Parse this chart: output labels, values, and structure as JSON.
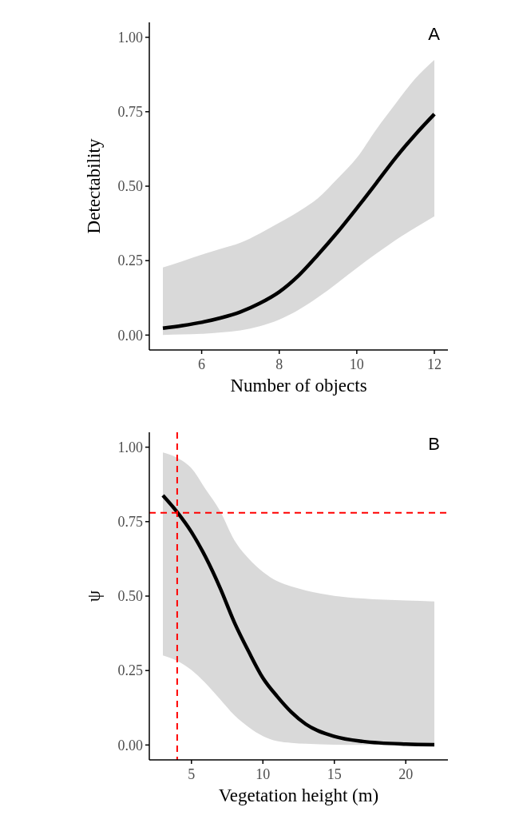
{
  "chart_data": [
    {
      "type": "line",
      "xlabel": "Number of objects",
      "ylabel": "Detectability",
      "annotations": [
        "A"
      ],
      "xlim": [
        4.65,
        12.35
      ],
      "xticks": [
        6,
        8,
        10,
        12
      ],
      "ylim": [
        -0.05,
        1.05
      ],
      "yticks": [
        {
          "value": 0,
          "label": "0.00"
        },
        {
          "value": 0.25,
          "label": "0.25"
        },
        {
          "value": 0.5,
          "label": "0.50"
        },
        {
          "value": 0.75,
          "label": "0.75"
        },
        {
          "value": 1,
          "label": "1.00"
        }
      ],
      "series": [
        {
          "color": "#000000",
          "x": [
            5,
            5.5,
            6,
            6.5,
            7,
            7.5,
            8,
            8.5,
            9,
            9.5,
            10,
            10.5,
            11,
            11.5,
            12
          ],
          "values": [
            0.023,
            0.032,
            0.043,
            0.058,
            0.078,
            0.107,
            0.145,
            0.2,
            0.27,
            0.345,
            0.426,
            0.51,
            0.595,
            0.672,
            0.742
          ],
          "lower": [
            0,
            0.002,
            0.004,
            0.009,
            0.016,
            0.03,
            0.052,
            0.085,
            0.127,
            0.175,
            0.225,
            0.273,
            0.319,
            0.36,
            0.399
          ],
          "upper": [
            0.227,
            0.248,
            0.27,
            0.29,
            0.31,
            0.341,
            0.377,
            0.415,
            0.46,
            0.525,
            0.595,
            0.69,
            0.777,
            0.86,
            0.924
          ]
        }
      ]
    },
    {
      "type": "line",
      "xlabel": "Vegetation height (m)",
      "ylabel": "ψ",
      "annotations": [
        "B"
      ],
      "xlim": [
        2.05,
        22.95
      ],
      "xticks": [
        5,
        10,
        15,
        20
      ],
      "ylim": [
        -0.05,
        1.05
      ],
      "yticks": [
        {
          "value": 0,
          "label": "0.00"
        },
        {
          "value": 0.25,
          "label": "0.25"
        },
        {
          "value": 0.5,
          "label": "0.50"
        },
        {
          "value": 0.75,
          "label": "0.75"
        },
        {
          "value": 1,
          "label": "1.00"
        }
      ],
      "ref_lines": [
        {
          "axis": "x",
          "value": 4,
          "color": "#ff0000",
          "line_style": "dashed"
        },
        {
          "axis": "y",
          "value": 0.78,
          "color": "#ff0000",
          "line_style": "dashed"
        }
      ],
      "series": [
        {
          "color": "#000000",
          "x": [
            3,
            4,
            5,
            6,
            7,
            8,
            9,
            10,
            11,
            12,
            13,
            15,
            17,
            20,
            22
          ],
          "values": [
            0.838,
            0.782,
            0.715,
            0.63,
            0.528,
            0.412,
            0.314,
            0.225,
            0.163,
            0.11,
            0.07,
            0.029,
            0.012,
            0.003,
            0.001
          ],
          "lower": [
            0.301,
            0.283,
            0.252,
            0.207,
            0.154,
            0.1,
            0.06,
            0.03,
            0.013,
            0.007,
            0.004,
            0.001,
            0,
            0,
            0
          ],
          "upper": [
            0.982,
            0.964,
            0.929,
            0.858,
            0.786,
            0.688,
            0.626,
            0.581,
            0.55,
            0.532,
            0.519,
            0.501,
            0.492,
            0.485,
            0.482
          ]
        }
      ]
    }
  ]
}
